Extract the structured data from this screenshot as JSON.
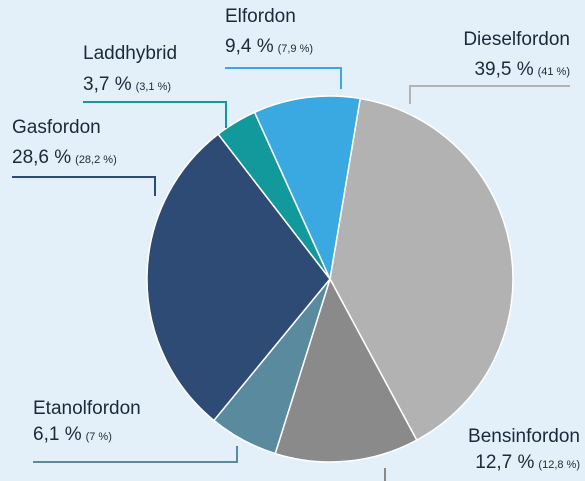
{
  "chart_data": {
    "type": "pie",
    "categories": [
      "Dieselfordon",
      "Bensinfordon",
      "Etanolfordon",
      "Gasfordon",
      "Laddhybrid",
      "Elfordon"
    ],
    "values": [
      39.5,
      12.7,
      6.1,
      28.6,
      3.7,
      9.4
    ],
    "value_labels": [
      "39,5 %",
      "12,7 %",
      "6,1 %",
      "28,6 %",
      "3,7 %",
      "9,4 %"
    ],
    "comparison_values": [
      41,
      12.8,
      7,
      28.2,
      3.1,
      7.9
    ],
    "comparison_value_labels": [
      "(41 %)",
      "(12,8 %)",
      "(7 %)",
      "(28,2 %)",
      "(3,1 %)",
      "(7,9 %)"
    ],
    "colors": [
      "#b2b2b2",
      "#8a8a8a",
      "#5a8a9e",
      "#2d4b74",
      "#11999b",
      "#3aa9e1"
    ]
  }
}
